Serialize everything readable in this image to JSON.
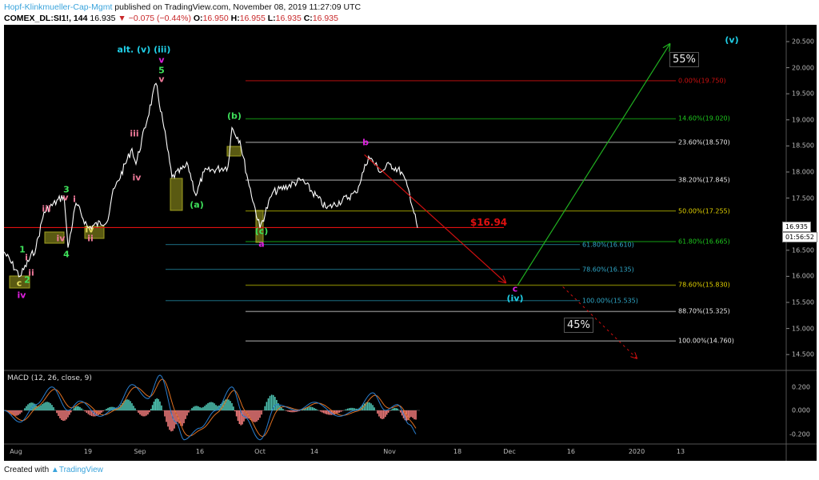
{
  "header": {
    "author": "Hopf-Klinkmueller-Cap-Mgmt",
    "published": "published on TradingView.com, November 08, 2019 11:27:09 UTC",
    "symbol": "COMEX_DL:SI1!, 144",
    "last": "16.935",
    "change": "▼ −0.075 (−0.44%)",
    "o_label": "O:",
    "o": "16.950",
    "h_label": "H:",
    "h": "16.955",
    "l_label": "L:",
    "l": "16.935",
    "c_label": "C:",
    "c": "16.935"
  },
  "price_axis": [
    "20.500",
    "20.000",
    "19.500",
    "19.000",
    "18.500",
    "18.000",
    "17.500",
    "16.500",
    "16.000",
    "15.500",
    "15.000",
    "14.500"
  ],
  "current_price_tag": "16.935",
  "countdown": "01:56:52",
  "time_axis": [
    "Aug",
    "19",
    "Sep",
    "16",
    "Oct",
    "14",
    "Nov",
    "18",
    "Dec",
    "16",
    "2020",
    "13"
  ],
  "macd": {
    "title": "MACD (12, 26, close, 9)",
    "axis": [
      "0.200",
      "0.000",
      "-0.200"
    ]
  },
  "price_line_label": "$16.94",
  "fib_main": [
    {
      "label": "0.00%(19.750)",
      "price": 19.75,
      "line": "#7a0a0a",
      "color": "#d01010"
    },
    {
      "label": "14.60%(19.020)",
      "price": 19.02,
      "line": "#0d6a0d",
      "color": "#1ec81e"
    },
    {
      "label": "23.60%(18.570)",
      "price": 18.57,
      "line": "#777777",
      "color": "#e8e8e8"
    },
    {
      "label": "38.20%(17.845)",
      "price": 17.845,
      "line": "#777777",
      "color": "#e8e8e8"
    },
    {
      "label": "50.00%(17.255)",
      "price": 17.255,
      "line": "#6b6b00",
      "color": "#e0d000"
    },
    {
      "label": "61.80%(16.665)",
      "price": 16.665,
      "line": "#0d6a0d",
      "color": "#1ec81e"
    },
    {
      "label": "78.60%(15.830)",
      "price": 15.83,
      "line": "#6b6b00",
      "color": "#e0d000"
    },
    {
      "label": "88.70%(15.325)",
      "price": 15.325,
      "line": "#777777",
      "color": "#e8e8e8"
    },
    {
      "label": "100.00%(14.760)",
      "price": 14.76,
      "line": "#777777",
      "color": "#e8e8e8"
    }
  ],
  "fib_ext": [
    {
      "label": "61.80%(16.610)",
      "price": 16.61,
      "line": "#16596a",
      "color": "#30a8c8"
    },
    {
      "label": "78.60%(16.135)",
      "price": 16.135,
      "line": "#16596a",
      "color": "#30a8c8"
    },
    {
      "label": "100.00%(15.535)",
      "price": 15.535,
      "line": "#16596a",
      "color": "#30a8c8"
    }
  ],
  "targets": {
    "up": "55%",
    "down": "45%"
  },
  "waves": {
    "alt": "alt. (v) (iii)",
    "top_v": "v",
    "top_5": "5",
    "top_v2": "v",
    "iii_a": "iii",
    "iv_a": "iv",
    "b_paren": "(b)",
    "a_paren": "(a)",
    "w3": "3",
    "v3": "v",
    "i3": "i",
    "iii_b": "iii",
    "iv_b": "iv",
    "w4": "4",
    "iv_box": "iv",
    "ii_b": "ii",
    "w1": "1",
    "i1": "i",
    "ii1": "ii",
    "w2": "2",
    "c_box": "c",
    "iv_low": "iv",
    "c_paren": "(c)",
    "a_low": "a",
    "b_low": "b",
    "c_target": "c",
    "iv_paren": "(iv)",
    "v_paren": "(v)"
  },
  "colors": {
    "wave_green": "#3ee05a",
    "wave_pink": "#f07a9a",
    "wave_magenta": "#e020e0",
    "wave_cyan": "#20d0e8",
    "wave_yellow": "#e8e060",
    "price_line": "#e01010",
    "bull": "#20b020",
    "bear": "#d01010"
  },
  "footer": {
    "created": "Created with",
    "brand": "TradingView"
  },
  "chart_data": {
    "type": "line",
    "title": "COMEX_DL:SI1!, 144",
    "ylim": [
      14.3,
      20.8
    ],
    "price_path": [
      [
        "2019-07-29",
        16.47
      ],
      [
        "2019-08-02",
        16.0
      ],
      [
        "2019-08-06",
        16.55
      ],
      [
        "2019-08-08",
        17.23
      ],
      [
        "2019-08-13",
        17.55
      ],
      [
        "2019-08-14",
        16.55
      ],
      [
        "2019-08-16",
        17.4
      ],
      [
        "2019-08-19",
        16.93
      ],
      [
        "2019-08-24",
        17.08
      ],
      [
        "2019-08-25",
        17.55
      ],
      [
        "2019-08-30",
        18.45
      ],
      [
        "2019-08-31",
        18.15
      ],
      [
        "2019-09-05",
        19.7
      ],
      [
        "2019-09-07",
        18.85
      ],
      [
        "2019-09-09",
        17.9
      ],
      [
        "2019-09-13",
        18.13
      ],
      [
        "2019-09-15",
        17.55
      ],
      [
        "2019-09-17",
        18.0
      ],
      [
        "2019-09-23",
        18.1
      ],
      [
        "2019-09-24",
        18.85
      ],
      [
        "2019-09-26",
        18.6
      ],
      [
        "2019-09-28",
        17.85
      ],
      [
        "2019-10-01",
        16.93
      ],
      [
        "2019-10-04",
        17.6
      ],
      [
        "2019-10-11",
        17.85
      ],
      [
        "2019-10-17",
        17.3
      ],
      [
        "2019-10-24",
        17.6
      ],
      [
        "2019-10-27",
        18.3
      ],
      [
        "2019-10-30",
        18.0
      ],
      [
        "2019-11-01",
        18.15
      ],
      [
        "2019-11-04",
        18.0
      ],
      [
        "2019-11-06",
        17.6
      ],
      [
        "2019-11-08",
        16.93
      ]
    ],
    "macd_path": [
      [
        "2019-07-29",
        0.0
      ],
      [
        "2019-08-02",
        -0.1
      ],
      [
        "2019-08-06",
        0.05
      ],
      [
        "2019-08-10",
        0.2
      ],
      [
        "2019-08-14",
        0.0
      ],
      [
        "2019-08-17",
        0.08
      ],
      [
        "2019-08-22",
        -0.05
      ],
      [
        "2019-08-26",
        0.02
      ],
      [
        "2019-08-30",
        0.22
      ],
      [
        "2019-09-03",
        0.1
      ],
      [
        "2019-09-06",
        0.3
      ],
      [
        "2019-09-10",
        -0.1
      ],
      [
        "2019-09-12",
        -0.25
      ],
      [
        "2019-09-16",
        -0.15
      ],
      [
        "2019-09-20",
        0.0
      ],
      [
        "2019-09-24",
        0.2
      ],
      [
        "2019-09-27",
        -0.05
      ],
      [
        "2019-10-01",
        -0.25
      ],
      [
        "2019-10-05",
        0.05
      ],
      [
        "2019-10-10",
        0.0
      ],
      [
        "2019-10-14",
        0.07
      ],
      [
        "2019-10-20",
        -0.05
      ],
      [
        "2019-10-24",
        0.0
      ],
      [
        "2019-10-28",
        0.15
      ],
      [
        "2019-10-31",
        0.0
      ],
      [
        "2019-11-03",
        0.05
      ],
      [
        "2019-11-06",
        -0.12
      ],
      [
        "2019-11-08",
        -0.21
      ]
    ],
    "projection_up": [
      [
        "2019-12-03",
        15.83
      ],
      [
        "2020-01-10",
        20.45
      ]
    ],
    "projection_down_from": [
      [
        "2019-10-26",
        18.33
      ],
      [
        "2019-11-30",
        15.88
      ]
    ],
    "projection_alt": [
      [
        "2019-12-14",
        15.8
      ],
      [
        "2020-01-01",
        14.43
      ]
    ]
  }
}
